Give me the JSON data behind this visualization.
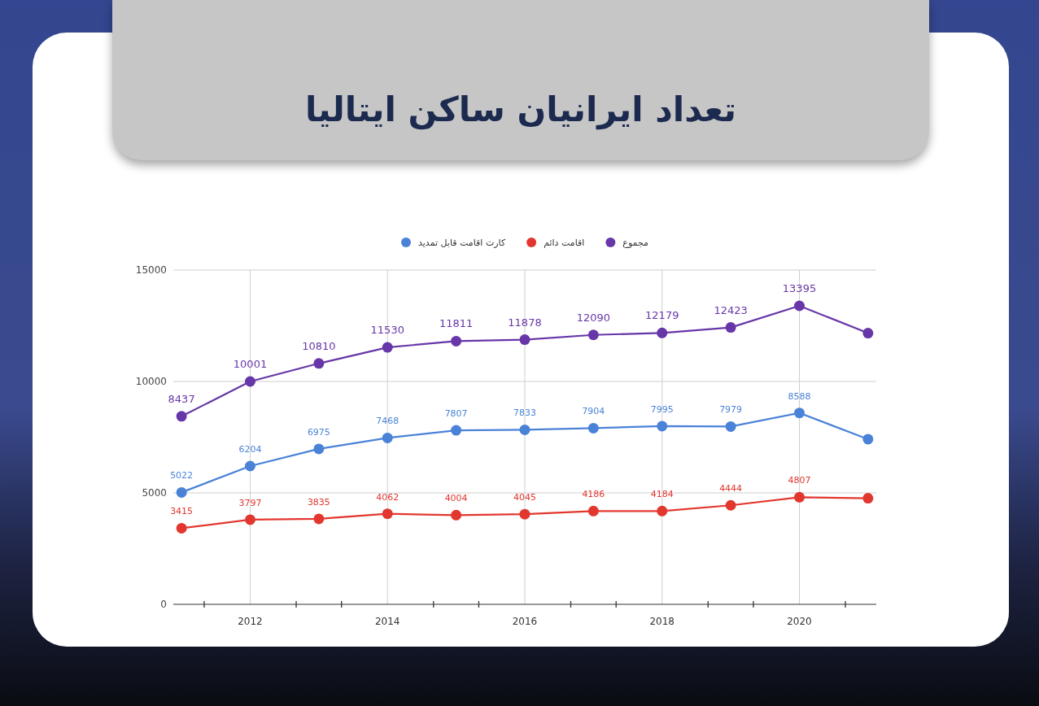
{
  "chart_data": {
    "type": "line",
    "title": "تعداد ایرانیان ساکن ایتالیا",
    "x": [
      2011,
      2012,
      2013,
      2014,
      2015,
      2016,
      2017,
      2018,
      2019,
      2020,
      2021
    ],
    "series": [
      {
        "name": "کارت اقامت قابل تمدید",
        "color": "#4a82d8",
        "values": [
          5022,
          6204,
          6975,
          7468,
          7807,
          7833,
          7904,
          7995,
          7979,
          8588,
          7410
        ],
        "value_labels": [
          "5022",
          "6204",
          "6975",
          "7468",
          "7807",
          "7833",
          "7904",
          "7995",
          "7979",
          "8588",
          null
        ]
      },
      {
        "name": "اقامت دائم",
        "color": "#e2372f",
        "values": [
          3415,
          3797,
          3835,
          4062,
          4004,
          4045,
          4186,
          4184,
          4444,
          4807,
          4760
        ],
        "value_labels": [
          "3415",
          "3797",
          "3835",
          "4062",
          "4004",
          "4045",
          "4186",
          "4184",
          "4444",
          "4807",
          null
        ]
      },
      {
        "name": "مجموع",
        "color": "#6736a8",
        "values": [
          8437,
          10001,
          10810,
          11530,
          11811,
          11878,
          12090,
          12179,
          12423,
          13395,
          12170
        ],
        "value_labels": [
          "8437",
          "10001",
          "10810",
          "11530",
          "11811",
          "11878",
          "12090",
          "12179",
          "12423",
          "13395",
          null
        ]
      }
    ],
    "xlim": [
      2010.88,
      2021.12
    ],
    "ylim": [
      0,
      15000
    ],
    "xticks": [
      {
        "value": 2011.33,
        "label": null
      },
      2012,
      {
        "value": 2012.67,
        "label": null
      },
      {
        "value": 2013.33,
        "label": null
      },
      2014,
      {
        "value": 2014.67,
        "label": null
      },
      {
        "value": 2015.33,
        "label": null
      },
      2016,
      {
        "value": 2016.67,
        "label": null
      },
      {
        "value": 2017.33,
        "label": null
      },
      2018,
      {
        "value": 2018.67,
        "label": null
      },
      {
        "value": 2019.33,
        "label": null
      },
      2020,
      {
        "value": 2020.67,
        "label": null
      }
    ],
    "yticks": [
      0,
      5000,
      10000,
      15000
    ],
    "grid": true,
    "legend": "top",
    "marker": "circle",
    "line_style": "solid"
  }
}
